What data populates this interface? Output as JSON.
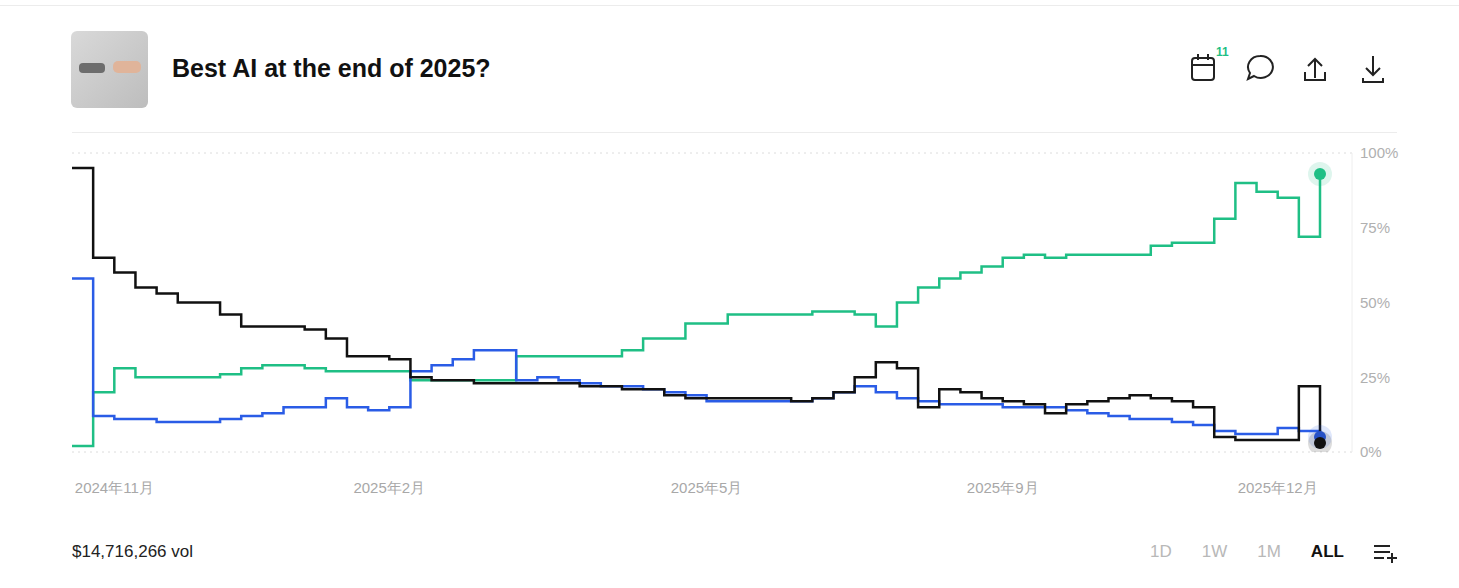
{
  "chart_data": {
    "type": "line",
    "title": "Best AI at the end of 2025?",
    "badge": "11",
    "volume_label": "$14,716,266 vol",
    "range_buttons": [
      "1D",
      "1W",
      "1M",
      "ALL"
    ],
    "selected_range": "ALL",
    "categories": [
      null,
      null,
      "2024年11月",
      null,
      null,
      null,
      null,
      null,
      null,
      null,
      null,
      null,
      null,
      null,
      null,
      "2025年2月",
      null,
      null,
      null,
      null,
      null,
      null,
      null,
      null,
      null,
      null,
      null,
      null,
      null,
      null,
      "2025年5月",
      null,
      null,
      null,
      null,
      null,
      null,
      null,
      null,
      null,
      null,
      null,
      null,
      null,
      "2025年9月",
      null,
      null,
      null,
      null,
      null,
      null,
      null,
      null,
      null,
      null,
      null,
      null,
      "2025年12月",
      null,
      null
    ],
    "series": [
      {
        "color": "#1fbf85",
        "values": [
          2,
          20,
          28,
          25,
          25,
          25,
          25,
          26,
          28,
          29,
          29,
          28,
          27,
          27,
          27,
          27,
          24,
          24,
          24,
          24,
          24,
          32,
          32,
          32,
          32,
          32,
          34,
          38,
          38,
          43,
          43,
          46,
          46,
          46,
          46,
          47,
          47,
          46,
          42,
          50,
          55,
          58,
          60,
          62,
          65,
          66,
          65,
          66,
          66,
          66,
          66,
          69,
          70,
          70,
          78,
          90,
          87,
          85,
          72,
          93
        ]
      },
      {
        "color": "#2a5ce6",
        "values": [
          58,
          12,
          11,
          11,
          10,
          10,
          10,
          11,
          12,
          13,
          15,
          15,
          18,
          15,
          14,
          15,
          27,
          29,
          31,
          34,
          34,
          24,
          25,
          24,
          23,
          22,
          22,
          21,
          20,
          19,
          17,
          17,
          17,
          17,
          17,
          18,
          20,
          22,
          20,
          18,
          17,
          16,
          16,
          16,
          15,
          15,
          15,
          14,
          13,
          12,
          11,
          11,
          10,
          9,
          7,
          6,
          6,
          8,
          7,
          5
        ]
      },
      {
        "color": "#111111",
        "values": [
          95,
          65,
          60,
          55,
          53,
          50,
          50,
          46,
          42,
          42,
          42,
          41,
          38,
          32,
          32,
          31,
          25,
          24,
          24,
          23,
          23,
          23,
          23,
          23,
          22,
          22,
          21,
          21,
          19,
          18,
          18,
          18,
          18,
          18,
          17,
          18,
          20,
          25,
          30,
          28,
          15,
          21,
          20,
          18,
          17,
          16,
          13,
          16,
          17,
          18,
          19,
          18,
          17,
          15,
          5,
          4,
          4,
          4,
          22,
          3
        ]
      }
    ],
    "ylim": [
      0,
      100
    ],
    "yticks": [
      {
        "value": 0,
        "label": "0%"
      },
      {
        "value": 25,
        "label": "25%"
      },
      {
        "value": 50,
        "label": "50%"
      },
      {
        "value": 75,
        "label": "75%"
      },
      {
        "value": 100,
        "label": "100%"
      }
    ],
    "grid": true,
    "line_style": "step"
  }
}
